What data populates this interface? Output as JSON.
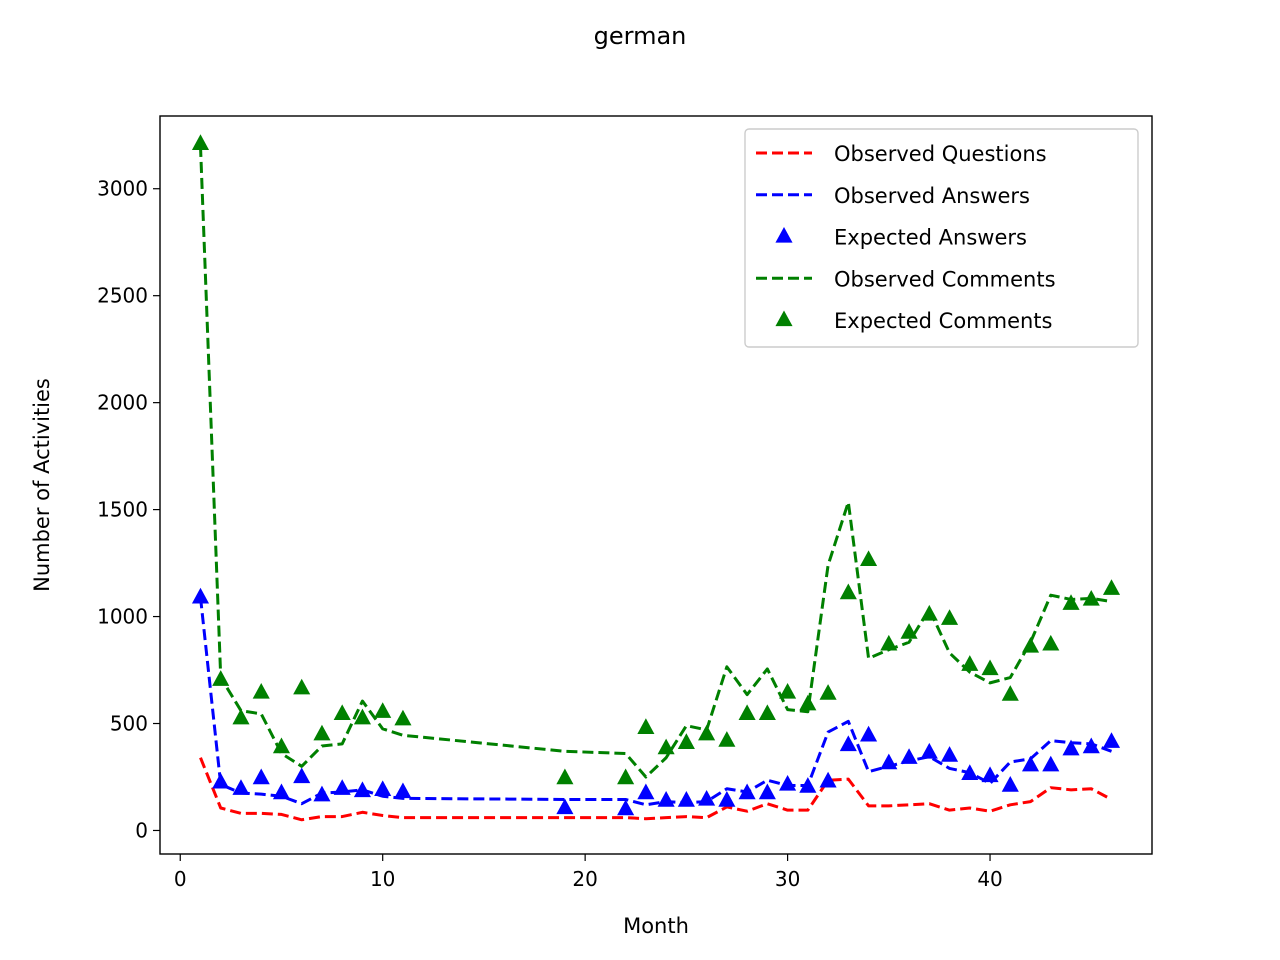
{
  "chart_data": {
    "type": "line",
    "title": "german",
    "xlabel": "Month",
    "ylabel": "Number of Activities",
    "xlim": [
      -1,
      48
    ],
    "ylim": [
      -110,
      3340
    ],
    "xticks": [
      0,
      10,
      20,
      30,
      40
    ],
    "yticks": [
      0,
      500,
      1000,
      1500,
      2000,
      2500,
      3000
    ],
    "grid": false,
    "legend_position": "upper right",
    "x": [
      1,
      2,
      3,
      4,
      5,
      6,
      7,
      8,
      9,
      10,
      11,
      19,
      22,
      23,
      24,
      25,
      26,
      27,
      28,
      29,
      30,
      31,
      32,
      33,
      34,
      35,
      36,
      37,
      38,
      39,
      40,
      41,
      42,
      43,
      44,
      45,
      46
    ],
    "series": [
      {
        "name": "Observed Questions",
        "style": "dashed-line",
        "color": "#ff0000",
        "values": [
          340,
          105,
          80,
          80,
          75,
          50,
          65,
          65,
          85,
          70,
          60,
          60,
          60,
          55,
          60,
          65,
          60,
          110,
          90,
          125,
          95,
          95,
          235,
          240,
          115,
          115,
          120,
          125,
          95,
          105,
          90,
          120,
          135,
          200,
          190,
          195,
          145
        ]
      },
      {
        "name": "Observed Answers",
        "style": "dashed-line",
        "color": "#0000ff",
        "values": [
          1090,
          215,
          175,
          170,
          160,
          125,
          175,
          180,
          190,
          160,
          150,
          145,
          145,
          120,
          135,
          130,
          135,
          195,
          180,
          235,
          210,
          210,
          460,
          510,
          275,
          300,
          325,
          345,
          290,
          270,
          220,
          320,
          335,
          420,
          410,
          405,
          370
        ]
      },
      {
        "name": "Expected Answers",
        "style": "triangle-markers",
        "color": "#0000ff",
        "values": [
          1090,
          225,
          195,
          245,
          175,
          250,
          165,
          195,
          185,
          190,
          180,
          105,
          100,
          175,
          140,
          140,
          145,
          140,
          175,
          175,
          215,
          205,
          230,
          400,
          445,
          315,
          340,
          365,
          350,
          265,
          255,
          210,
          305,
          305,
          380,
          390,
          415
        ]
      },
      {
        "name": "Observed Comments",
        "style": "dashed-line",
        "color": "#008000",
        "values": [
          3200,
          715,
          560,
          545,
          360,
          300,
          395,
          405,
          605,
          475,
          445,
          370,
          360,
          250,
          340,
          490,
          470,
          765,
          635,
          755,
          565,
          555,
          1240,
          1535,
          805,
          845,
          880,
          1035,
          830,
          740,
          690,
          715,
          880,
          1100,
          1080,
          1085,
          1070
        ]
      },
      {
        "name": "Expected Comments",
        "style": "triangle-markers",
        "color": "#008000",
        "values": [
          3210,
          705,
          525,
          645,
          390,
          665,
          450,
          545,
          525,
          555,
          520,
          245,
          245,
          480,
          385,
          410,
          450,
          420,
          545,
          545,
          645,
          590,
          640,
          1110,
          1265,
          870,
          925,
          1010,
          990,
          775,
          755,
          635,
          860,
          870,
          1060,
          1080,
          1130
        ]
      }
    ]
  }
}
